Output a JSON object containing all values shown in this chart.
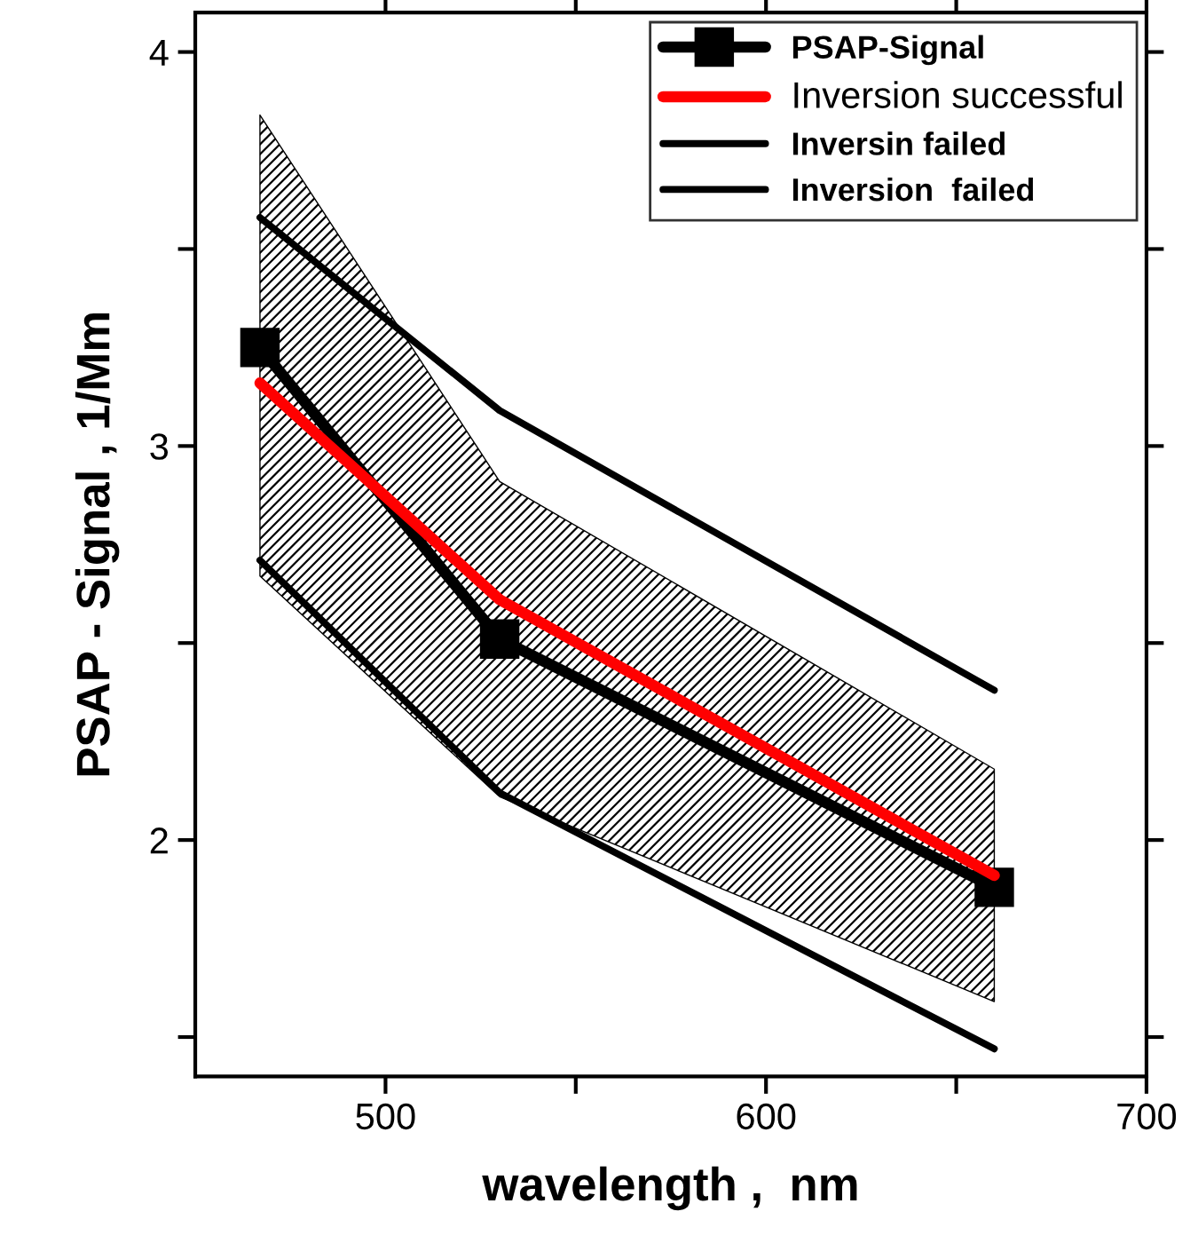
{
  "chart_data": {
    "type": "line",
    "xlabel": "wavelength ,  nm",
    "ylabel": "PSAP - Signal , 1/Mm",
    "x": [
      467,
      530,
      660
    ],
    "series": [
      {
        "name": "PSAP-Signal",
        "color": "#000000",
        "values": [
          3.25,
          2.51,
          1.88
        ],
        "marker": "square",
        "lower": [
          2.67,
          2.11,
          1.59
        ],
        "upper": [
          3.84,
          2.91,
          2.18
        ]
      },
      {
        "name": "Inversion successful",
        "color": "#ff0000",
        "values": [
          3.16,
          2.61,
          1.91
        ],
        "marker": "none"
      },
      {
        "name": "Inversin failed",
        "color": "#000000",
        "values": [
          3.58,
          3.09,
          2.38
        ],
        "marker": "none"
      },
      {
        "name": "Inversion  failed",
        "color": "#000000",
        "values": [
          2.71,
          2.12,
          1.47
        ],
        "marker": "none"
      }
    ],
    "xlim": [
      450,
      700
    ],
    "xticks": [
      500,
      {
        "value": 550,
        "label": null
      },
      600,
      {
        "value": 650,
        "label": null
      },
      700
    ],
    "ylim": [
      1.4,
      4.1
    ],
    "yticks": [
      {
        "value": 1.5,
        "label": null
      },
      2,
      {
        "value": 2.5,
        "label": null
      },
      3,
      {
        "value": 3.5,
        "label": null
      },
      4
    ],
    "grid": false,
    "legend": "top right",
    "line_style": "solid"
  }
}
